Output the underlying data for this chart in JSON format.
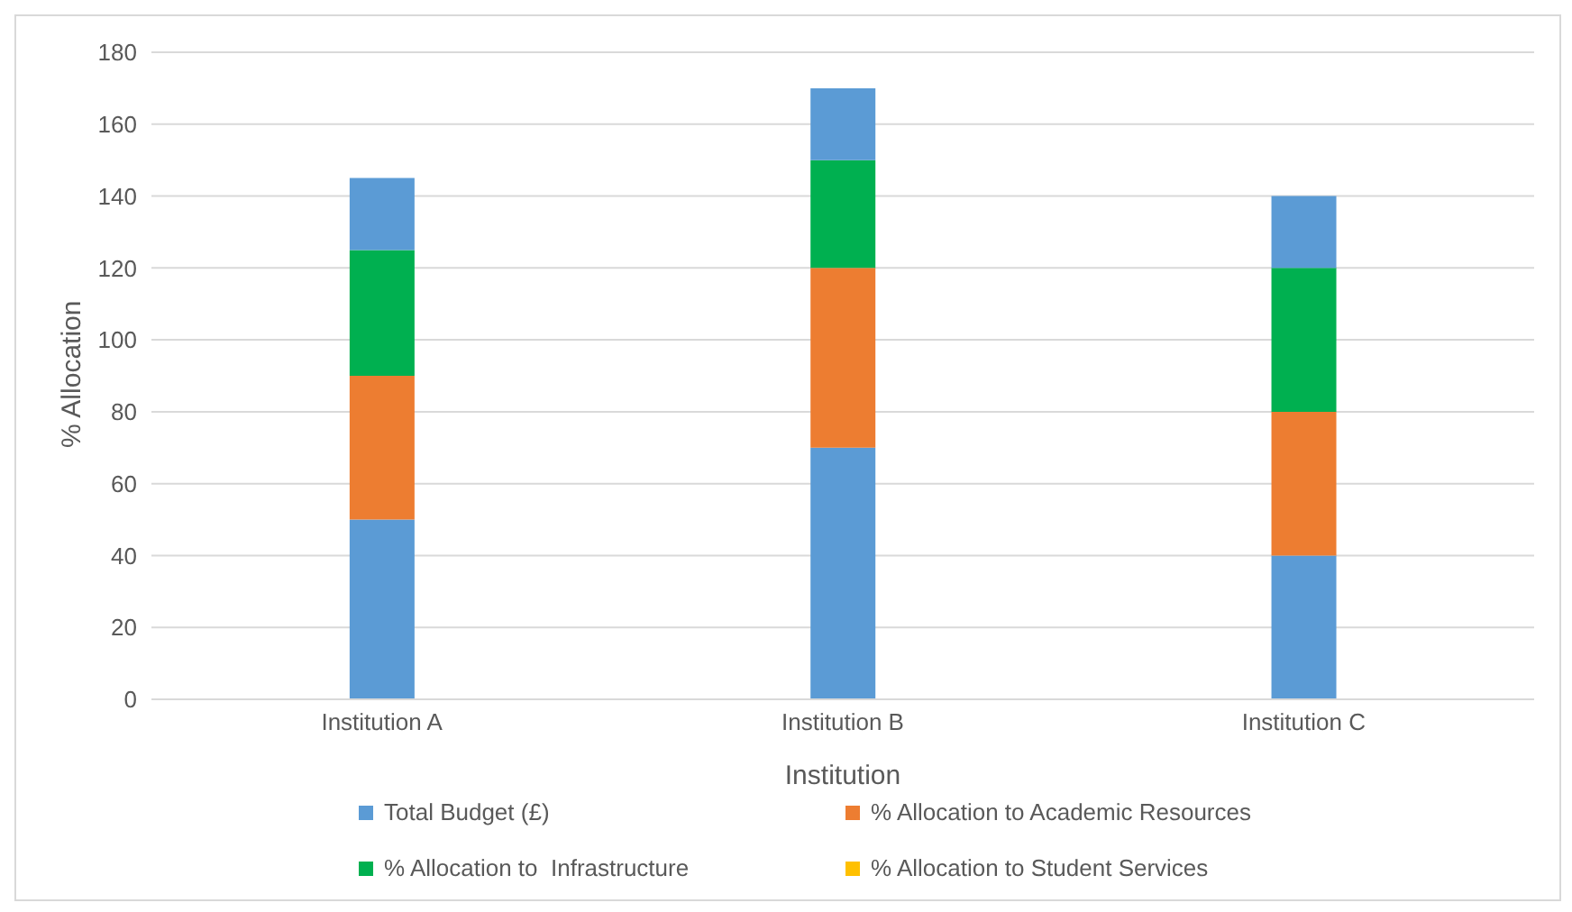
{
  "chart_data": {
    "type": "bar",
    "stacked": true,
    "xlabel": "Institution",
    "ylabel": "% Allocation",
    "categories": [
      "Institution A",
      "Institution B",
      "Institution C"
    ],
    "series": [
      {
        "name": "Total Budget (£)",
        "color": "#5b9bd5",
        "values": [
          50,
          70,
          40
        ]
      },
      {
        "name": "% Allocation to Academic Resources",
        "color": "#ed7d31",
        "values": [
          40,
          50,
          40
        ]
      },
      {
        "name": "% Allocation to  Infrastructure",
        "color": "#00b050",
        "values": [
          35,
          30,
          40
        ]
      },
      {
        "name": "% Allocation to Student Services",
        "color": "#ffc000",
        "values": [
          0,
          0,
          0
        ]
      },
      {
        "color": "#5b9bd5",
        "values": [
          20,
          20,
          20
        ]
      }
    ],
    "ylim": [
      0,
      180
    ],
    "yticks": [
      0,
      20,
      40,
      60,
      80,
      100,
      120,
      140,
      160,
      180
    ],
    "grid": "y",
    "legend": "bottom"
  }
}
